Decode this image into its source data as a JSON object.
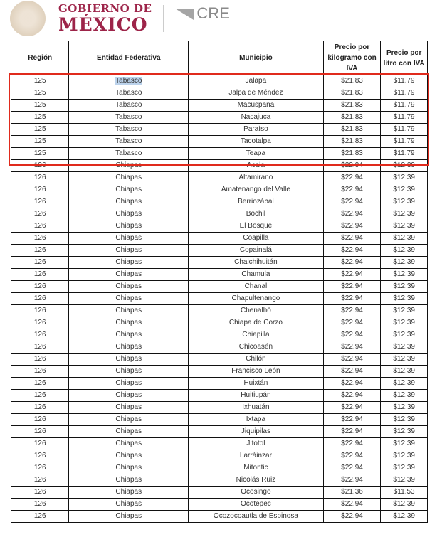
{
  "header": {
    "gob_line1": "GOBIERNO DE",
    "gob_line2": "MÉXICO",
    "cre": "CRE"
  },
  "colors": {
    "gob": "#9d2449",
    "highlight_box": "#e02a1c",
    "selection": "#bcd3ec"
  },
  "table": {
    "columns": [
      "Región",
      "Entidad Federativa",
      "Municipio",
      "Precio por kilogramo con IVA",
      "Precio por litro con IVA"
    ],
    "rows": [
      [
        "125",
        "Tabasco",
        "Jalapa",
        "$21.83",
        "$11.79"
      ],
      [
        "125",
        "Tabasco",
        "Jalpa de Méndez",
        "$21.83",
        "$11.79"
      ],
      [
        "125",
        "Tabasco",
        "Macuspana",
        "$21.83",
        "$11.79"
      ],
      [
        "125",
        "Tabasco",
        "Nacajuca",
        "$21.83",
        "$11.79"
      ],
      [
        "125",
        "Tabasco",
        "Paraíso",
        "$21.83",
        "$11.79"
      ],
      [
        "125",
        "Tabasco",
        "Tacotalpa",
        "$21.83",
        "$11.79"
      ],
      [
        "125",
        "Tabasco",
        "Teapa",
        "$21.83",
        "$11.79"
      ],
      [
        "126",
        "Chiapas",
        "Acala",
        "$22.94",
        "$12.39"
      ],
      [
        "126",
        "Chiapas",
        "Altamirano",
        "$22.94",
        "$12.39"
      ],
      [
        "126",
        "Chiapas",
        "Amatenango del Valle",
        "$22.94",
        "$12.39"
      ],
      [
        "126",
        "Chiapas",
        "Berriozábal",
        "$22.94",
        "$12.39"
      ],
      [
        "126",
        "Chiapas",
        "Bochil",
        "$22.94",
        "$12.39"
      ],
      [
        "126",
        "Chiapas",
        "El Bosque",
        "$22.94",
        "$12.39"
      ],
      [
        "126",
        "Chiapas",
        "Coapilla",
        "$22.94",
        "$12.39"
      ],
      [
        "126",
        "Chiapas",
        "Copainalá",
        "$22.94",
        "$12.39"
      ],
      [
        "126",
        "Chiapas",
        "Chalchihuitán",
        "$22.94",
        "$12.39"
      ],
      [
        "126",
        "Chiapas",
        "Chamula",
        "$22.94",
        "$12.39"
      ],
      [
        "126",
        "Chiapas",
        "Chanal",
        "$22.94",
        "$12.39"
      ],
      [
        "126",
        "Chiapas",
        "Chapultenango",
        "$22.94",
        "$12.39"
      ],
      [
        "126",
        "Chiapas",
        "Chenalhó",
        "$22.94",
        "$12.39"
      ],
      [
        "126",
        "Chiapas",
        "Chiapa de Corzo",
        "$22.94",
        "$12.39"
      ],
      [
        "126",
        "Chiapas",
        "Chiapilla",
        "$22.94",
        "$12.39"
      ],
      [
        "126",
        "Chiapas",
        "Chicoasén",
        "$22.94",
        "$12.39"
      ],
      [
        "126",
        "Chiapas",
        "Chilón",
        "$22.94",
        "$12.39"
      ],
      [
        "126",
        "Chiapas",
        "Francisco León",
        "$22.94",
        "$12.39"
      ],
      [
        "126",
        "Chiapas",
        "Huixtán",
        "$22.94",
        "$12.39"
      ],
      [
        "126",
        "Chiapas",
        "Huitiupán",
        "$22.94",
        "$12.39"
      ],
      [
        "126",
        "Chiapas",
        "Ixhuatán",
        "$22.94",
        "$12.39"
      ],
      [
        "126",
        "Chiapas",
        "Ixtapa",
        "$22.94",
        "$12.39"
      ],
      [
        "126",
        "Chiapas",
        "Jiquipilas",
        "$22.94",
        "$12.39"
      ],
      [
        "126",
        "Chiapas",
        "Jitotol",
        "$22.94",
        "$12.39"
      ],
      [
        "126",
        "Chiapas",
        "Larráinzar",
        "$22.94",
        "$12.39"
      ],
      [
        "126",
        "Chiapas",
        "Mitontic",
        "$22.94",
        "$12.39"
      ],
      [
        "126",
        "Chiapas",
        "Nicolás Ruiz",
        "$22.94",
        "$12.39"
      ],
      [
        "126",
        "Chiapas",
        "Ocosingo",
        "$21.36",
        "$11.53"
      ],
      [
        "126",
        "Chiapas",
        "Ocotepec",
        "$22.94",
        "$12.39"
      ],
      [
        "126",
        "Chiapas",
        "Ocozocoautla de Espinosa",
        "$22.94",
        "$12.39"
      ]
    ]
  }
}
